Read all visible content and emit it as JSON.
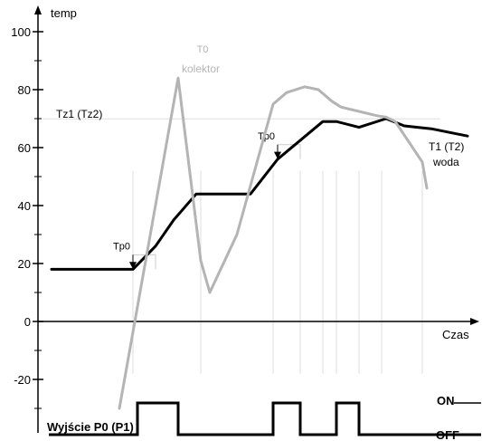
{
  "chart_data": {
    "type": "line",
    "title": "",
    "xlabel": "Czas",
    "ylabel": "temp",
    "ylim": [
      -30,
      100
    ],
    "yticks": [
      100,
      80,
      60,
      40,
      20,
      0,
      -20
    ],
    "grid": false,
    "legend": "none",
    "series": [
      {
        "name": "T1 (T2) woda",
        "role": "water",
        "color": "#000000",
        "x": [
          0,
          9,
          11.5,
          13.5,
          16,
          22,
          25,
          30,
          31.5,
          34,
          37,
          39,
          42,
          46
        ],
        "y": [
          18,
          18,
          26,
          35,
          44,
          44,
          56,
          69,
          69,
          67,
          70,
          67.5,
          66.5,
          64
        ]
      },
      {
        "name": "T0 kolektor",
        "role": "collector",
        "color": "#b4b4b4",
        "x": [
          7.5,
          14,
          16.5,
          17.5,
          20.5,
          24.5,
          26,
          28,
          29.5,
          31,
          32,
          36,
          37,
          38,
          39.5,
          41,
          41.5
        ],
        "y": [
          -30,
          84,
          21,
          10,
          30,
          75,
          79,
          81,
          80,
          76,
          74,
          71,
          70.5,
          69,
          62,
          55,
          46
        ]
      }
    ],
    "annotations": {
      "setpoint_label": "Tz1 (Tz2)",
      "setpoint_value": 69,
      "hysteresis_label": "Tp0",
      "hysteresis_steps": [
        {
          "x": 9,
          "from": 18,
          "to": 23
        },
        {
          "x": 25,
          "from": 56,
          "to": 61
        }
      ],
      "collector_label_line1": "T0",
      "collector_label_line2": "kolektor",
      "water_label_line1": "T1 (T2)",
      "water_label_line2": "woda",
      "vertical_markers_x": [
        9,
        16.5,
        24.5,
        27.5,
        30,
        31.5,
        34,
        36.5,
        41
      ]
    },
    "output": {
      "name": "Wyjście P0 (P1)",
      "on_label": "ON",
      "off_label": "OFF",
      "on_intervals": [
        [
          9.5,
          14
        ],
        [
          24.5,
          27.5
        ],
        [
          31.5,
          34
        ]
      ],
      "x_end": 47.5
    }
  }
}
